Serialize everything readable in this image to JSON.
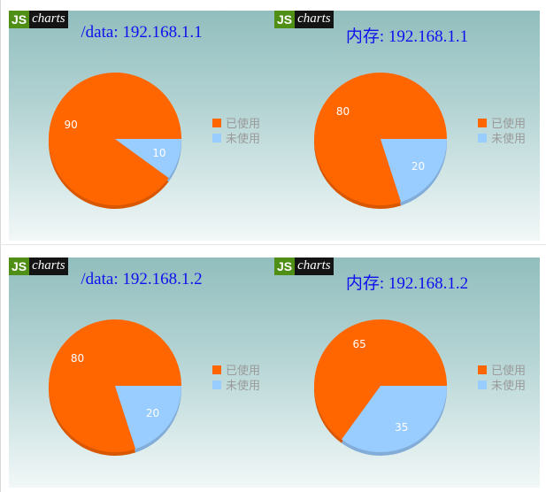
{
  "logo": {
    "js": "JS",
    "charts": "charts"
  },
  "colors": {
    "used": "#ff6600",
    "unused": "#99ccff",
    "title": "#1010ee"
  },
  "legend": {
    "used": "已使用",
    "unused": "未使用"
  },
  "chart_data": [
    {
      "type": "pie",
      "title": "/data: 192.168.1.1",
      "labels": [
        "已使用",
        "未使用"
      ],
      "values": [
        90,
        10
      ]
    },
    {
      "type": "pie",
      "title": "内存: 192.168.1.1",
      "labels": [
        "已使用",
        "未使用"
      ],
      "values": [
        80,
        20
      ]
    },
    {
      "type": "pie",
      "title": "/data: 192.168.1.2",
      "labels": [
        "已使用",
        "未使用"
      ],
      "values": [
        80,
        20
      ]
    },
    {
      "type": "pie",
      "title": "内存: 192.168.1.2",
      "labels": [
        "已使用",
        "未使用"
      ],
      "values": [
        65,
        35
      ]
    }
  ]
}
